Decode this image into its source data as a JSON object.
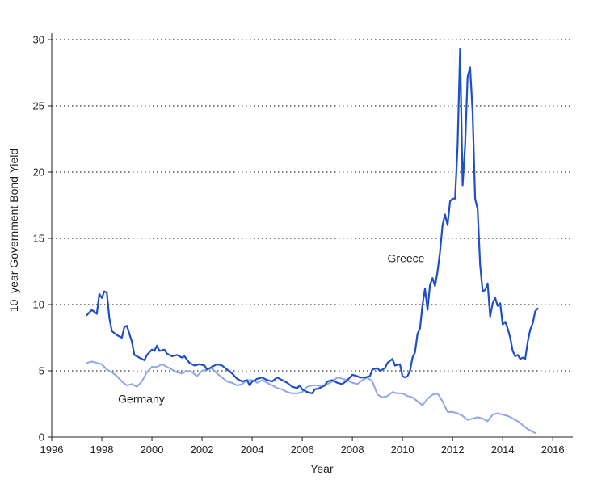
{
  "chart_data": {
    "type": "line",
    "title": "",
    "xlabel": "Year",
    "ylabel": "10–year Government Bond Yield",
    "xlim": [
      1996,
      2016.8
    ],
    "ylim": [
      0,
      30
    ],
    "x_ticks": [
      1996,
      1998,
      2000,
      2002,
      2004,
      2006,
      2008,
      2010,
      2012,
      2014,
      2016
    ],
    "y_ticks": [
      0,
      5,
      10,
      15,
      20,
      25,
      30
    ],
    "grid": "horizontal dotted",
    "legend": "none (inline labels)",
    "colors": {
      "greece": "#1f4fc8",
      "germany": "#8fa6ea",
      "grid": "#333333",
      "axis": "#222222"
    },
    "series": [
      {
        "name": "Greece",
        "label_at": [
          2009.4,
          13.2
        ],
        "points": [
          [
            1997.4,
            9.2
          ],
          [
            1997.6,
            9.6
          ],
          [
            1997.8,
            9.3
          ],
          [
            1997.9,
            10.8
          ],
          [
            1998.0,
            10.5
          ],
          [
            1998.1,
            11.0
          ],
          [
            1998.2,
            10.9
          ],
          [
            1998.3,
            9.0
          ],
          [
            1998.4,
            8.0
          ],
          [
            1998.6,
            7.7
          ],
          [
            1998.8,
            7.5
          ],
          [
            1998.9,
            8.3
          ],
          [
            1999.0,
            8.4
          ],
          [
            1999.2,
            7.2
          ],
          [
            1999.3,
            6.2
          ],
          [
            1999.5,
            6.0
          ],
          [
            1999.7,
            5.8
          ],
          [
            1999.8,
            6.2
          ],
          [
            2000.0,
            6.6
          ],
          [
            2000.1,
            6.5
          ],
          [
            2000.2,
            6.9
          ],
          [
            2000.3,
            6.5
          ],
          [
            2000.5,
            6.6
          ],
          [
            2000.6,
            6.3
          ],
          [
            2000.8,
            6.1
          ],
          [
            2001.0,
            6.2
          ],
          [
            2001.2,
            6.0
          ],
          [
            2001.3,
            6.1
          ],
          [
            2001.5,
            5.6
          ],
          [
            2001.7,
            5.4
          ],
          [
            2001.9,
            5.5
          ],
          [
            2002.1,
            5.4
          ],
          [
            2002.2,
            5.1
          ],
          [
            2002.4,
            5.3
          ],
          [
            2002.6,
            5.5
          ],
          [
            2002.8,
            5.4
          ],
          [
            2003.0,
            5.1
          ],
          [
            2003.2,
            4.8
          ],
          [
            2003.4,
            4.4
          ],
          [
            2003.6,
            4.2
          ],
          [
            2003.8,
            4.3
          ],
          [
            2003.9,
            3.9
          ],
          [
            2004.0,
            4.2
          ],
          [
            2004.2,
            4.4
          ],
          [
            2004.4,
            4.5
          ],
          [
            2004.6,
            4.3
          ],
          [
            2004.8,
            4.2
          ],
          [
            2005.0,
            4.5
          ],
          [
            2005.2,
            4.3
          ],
          [
            2005.4,
            4.1
          ],
          [
            2005.6,
            3.8
          ],
          [
            2005.8,
            3.7
          ],
          [
            2005.9,
            3.9
          ],
          [
            2006.0,
            3.6
          ],
          [
            2006.2,
            3.4
          ],
          [
            2006.4,
            3.3
          ],
          [
            2006.5,
            3.6
          ],
          [
            2006.7,
            3.7
          ],
          [
            2006.9,
            3.9
          ],
          [
            2007.0,
            4.2
          ],
          [
            2007.2,
            4.3
          ],
          [
            2007.4,
            4.1
          ],
          [
            2007.6,
            4.0
          ],
          [
            2007.8,
            4.3
          ],
          [
            2008.0,
            4.7
          ],
          [
            2008.2,
            4.6
          ],
          [
            2008.3,
            4.5
          ],
          [
            2008.5,
            4.5
          ],
          [
            2008.7,
            4.6
          ],
          [
            2008.8,
            5.1
          ],
          [
            2009.0,
            5.2
          ],
          [
            2009.1,
            5.0
          ],
          [
            2009.3,
            5.2
          ],
          [
            2009.4,
            5.6
          ],
          [
            2009.6,
            5.9
          ],
          [
            2009.7,
            5.4
          ],
          [
            2009.9,
            5.5
          ],
          [
            2010.0,
            4.6
          ],
          [
            2010.1,
            4.5
          ],
          [
            2010.2,
            4.6
          ],
          [
            2010.3,
            5.0
          ],
          [
            2010.4,
            6.0
          ],
          [
            2010.5,
            6.4
          ],
          [
            2010.6,
            7.8
          ],
          [
            2010.7,
            8.2
          ],
          [
            2010.8,
            10.0
          ],
          [
            2010.9,
            11.2
          ],
          [
            2011.0,
            9.6
          ],
          [
            2011.1,
            11.5
          ],
          [
            2011.2,
            12.0
          ],
          [
            2011.3,
            11.4
          ],
          [
            2011.4,
            12.5
          ],
          [
            2011.5,
            14.0
          ],
          [
            2011.6,
            16.0
          ],
          [
            2011.7,
            16.8
          ],
          [
            2011.8,
            16.0
          ],
          [
            2011.9,
            17.8
          ],
          [
            2012.0,
            18.0
          ],
          [
            2012.1,
            18.0
          ],
          [
            2012.2,
            22.0
          ],
          [
            2012.3,
            29.3
          ],
          [
            2012.4,
            19.0
          ],
          [
            2012.5,
            22.0
          ],
          [
            2012.6,
            27.2
          ],
          [
            2012.7,
            27.9
          ],
          [
            2012.8,
            24.5
          ],
          [
            2012.9,
            18.0
          ],
          [
            2013.0,
            17.2
          ],
          [
            2013.1,
            13.0
          ],
          [
            2013.2,
            11.0
          ],
          [
            2013.3,
            11.1
          ],
          [
            2013.4,
            11.6
          ],
          [
            2013.5,
            9.1
          ],
          [
            2013.6,
            10.1
          ],
          [
            2013.7,
            10.5
          ],
          [
            2013.8,
            9.9
          ],
          [
            2013.9,
            10.1
          ],
          [
            2014.0,
            8.5
          ],
          [
            2014.1,
            8.7
          ],
          [
            2014.2,
            8.2
          ],
          [
            2014.3,
            7.5
          ],
          [
            2014.4,
            6.5
          ],
          [
            2014.5,
            6.1
          ],
          [
            2014.6,
            6.2
          ],
          [
            2014.7,
            5.9
          ],
          [
            2014.8,
            6.0
          ],
          [
            2014.9,
            5.9
          ],
          [
            2015.0,
            7.2
          ],
          [
            2015.1,
            8.1
          ],
          [
            2015.2,
            8.6
          ],
          [
            2015.3,
            9.5
          ],
          [
            2015.4,
            9.7
          ]
        ]
      },
      {
        "name": "Germany",
        "label_at": [
          1998.65,
          2.6
        ],
        "points": [
          [
            1997.4,
            5.6
          ],
          [
            1997.6,
            5.7
          ],
          [
            1997.8,
            5.6
          ],
          [
            1998.0,
            5.5
          ],
          [
            1998.2,
            5.1
          ],
          [
            1998.4,
            4.9
          ],
          [
            1998.6,
            4.6
          ],
          [
            1998.8,
            4.2
          ],
          [
            1999.0,
            3.9
          ],
          [
            1999.2,
            4.0
          ],
          [
            1999.4,
            3.8
          ],
          [
            1999.6,
            4.2
          ],
          [
            1999.8,
            4.9
          ],
          [
            2000.0,
            5.3
          ],
          [
            2000.2,
            5.3
          ],
          [
            2000.4,
            5.5
          ],
          [
            2000.6,
            5.3
          ],
          [
            2000.8,
            5.1
          ],
          [
            2001.0,
            4.9
          ],
          [
            2001.2,
            4.8
          ],
          [
            2001.4,
            5.0
          ],
          [
            2001.6,
            4.9
          ],
          [
            2001.8,
            4.6
          ],
          [
            2002.0,
            5.0
          ],
          [
            2002.2,
            5.1
          ],
          [
            2002.4,
            5.2
          ],
          [
            2002.6,
            4.8
          ],
          [
            2002.8,
            4.5
          ],
          [
            2003.0,
            4.2
          ],
          [
            2003.2,
            4.1
          ],
          [
            2003.4,
            3.9
          ],
          [
            2003.6,
            4.0
          ],
          [
            2003.8,
            4.3
          ],
          [
            2004.0,
            4.3
          ],
          [
            2004.2,
            4.1
          ],
          [
            2004.4,
            4.3
          ],
          [
            2004.6,
            4.1
          ],
          [
            2004.8,
            3.9
          ],
          [
            2005.0,
            3.7
          ],
          [
            2005.2,
            3.6
          ],
          [
            2005.4,
            3.4
          ],
          [
            2005.6,
            3.3
          ],
          [
            2005.8,
            3.3
          ],
          [
            2006.0,
            3.4
          ],
          [
            2006.2,
            3.8
          ],
          [
            2006.4,
            3.9
          ],
          [
            2006.6,
            3.9
          ],
          [
            2006.8,
            3.8
          ],
          [
            2007.0,
            4.0
          ],
          [
            2007.2,
            4.2
          ],
          [
            2007.4,
            4.5
          ],
          [
            2007.6,
            4.4
          ],
          [
            2007.8,
            4.3
          ],
          [
            2008.0,
            4.1
          ],
          [
            2008.2,
            4.0
          ],
          [
            2008.4,
            4.3
          ],
          [
            2008.6,
            4.5
          ],
          [
            2008.8,
            4.2
          ],
          [
            2009.0,
            3.2
          ],
          [
            2009.2,
            3.0
          ],
          [
            2009.4,
            3.1
          ],
          [
            2009.6,
            3.4
          ],
          [
            2009.8,
            3.3
          ],
          [
            2010.0,
            3.3
          ],
          [
            2010.2,
            3.1
          ],
          [
            2010.4,
            3.0
          ],
          [
            2010.6,
            2.7
          ],
          [
            2010.8,
            2.4
          ],
          [
            2011.0,
            2.9
          ],
          [
            2011.2,
            3.2
          ],
          [
            2011.4,
            3.3
          ],
          [
            2011.6,
            2.7
          ],
          [
            2011.8,
            1.9
          ],
          [
            2012.0,
            1.9
          ],
          [
            2012.2,
            1.8
          ],
          [
            2012.4,
            1.6
          ],
          [
            2012.6,
            1.3
          ],
          [
            2012.8,
            1.4
          ],
          [
            2013.0,
            1.5
          ],
          [
            2013.2,
            1.4
          ],
          [
            2013.4,
            1.2
          ],
          [
            2013.6,
            1.7
          ],
          [
            2013.8,
            1.8
          ],
          [
            2014.0,
            1.7
          ],
          [
            2014.2,
            1.6
          ],
          [
            2014.4,
            1.4
          ],
          [
            2014.6,
            1.2
          ],
          [
            2014.8,
            0.9
          ],
          [
            2015.0,
            0.6
          ],
          [
            2015.2,
            0.4
          ],
          [
            2015.3,
            0.3
          ]
        ]
      }
    ]
  }
}
